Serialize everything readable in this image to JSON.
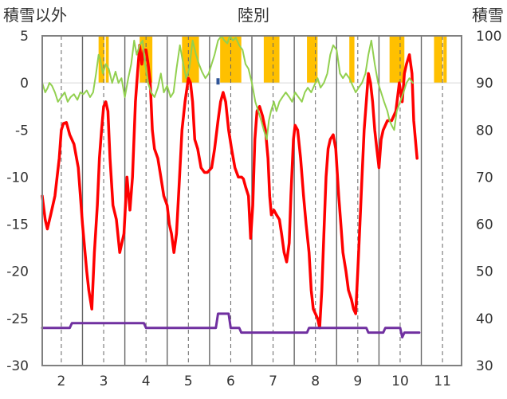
{
  "chart_data": {
    "type": "line",
    "title": "陸別",
    "ylabel_left": "積雪以外",
    "ylabel_right": "積雪",
    "y_left_range": [
      -30,
      5
    ],
    "y_right_range": [
      30,
      100
    ],
    "y_left_ticks": [
      5,
      0,
      -5,
      -10,
      -15,
      -20,
      -25,
      -30
    ],
    "y_right_ticks": [
      100,
      90,
      80,
      70,
      60,
      50,
      40,
      30
    ],
    "x_range": [
      1.55,
      11.45
    ],
    "x_ticks": [
      2,
      3,
      4,
      5,
      6,
      7,
      8,
      9,
      10,
      11
    ],
    "grid": {
      "vertical_dashed": true,
      "day_separators": true
    },
    "colors": {
      "red": "#ff0000",
      "green": "#92d050",
      "purple": "#7030a0",
      "orange": "#ffc000",
      "blue": "#2f5597",
      "frame": "#808080",
      "grid": "#666666"
    },
    "series": [
      {
        "color_key": "red",
        "axis": "left",
        "points": [
          [
            1.55,
            -12
          ],
          [
            1.62,
            -14.5
          ],
          [
            1.67,
            -15.5
          ],
          [
            1.75,
            -14
          ],
          [
            1.85,
            -12
          ],
          [
            1.95,
            -8
          ],
          [
            2.0,
            -5
          ],
          [
            2.05,
            -4.3
          ],
          [
            2.12,
            -4.2
          ],
          [
            2.2,
            -5.5
          ],
          [
            2.3,
            -6.5
          ],
          [
            2.4,
            -9
          ],
          [
            2.5,
            -15
          ],
          [
            2.6,
            -20
          ],
          [
            2.65,
            -22
          ],
          [
            2.72,
            -24
          ],
          [
            2.78,
            -18
          ],
          [
            2.85,
            -13
          ],
          [
            2.9,
            -8
          ],
          [
            2.95,
            -5
          ],
          [
            3.0,
            -2.5
          ],
          [
            3.05,
            -2
          ],
          [
            3.1,
            -3
          ],
          [
            3.15,
            -8
          ],
          [
            3.22,
            -13
          ],
          [
            3.3,
            -14.5
          ],
          [
            3.38,
            -18
          ],
          [
            3.48,
            -16
          ],
          [
            3.55,
            -10
          ],
          [
            3.62,
            -13.5
          ],
          [
            3.68,
            -10
          ],
          [
            3.75,
            -2
          ],
          [
            3.8,
            1
          ],
          [
            3.85,
            4
          ],
          [
            3.9,
            2
          ],
          [
            3.95,
            3.5
          ],
          [
            4.0,
            3.5
          ],
          [
            4.05,
            2
          ],
          [
            4.1,
            0
          ],
          [
            4.15,
            -5
          ],
          [
            4.2,
            -7
          ],
          [
            4.28,
            -8
          ],
          [
            4.35,
            -10
          ],
          [
            4.42,
            -12
          ],
          [
            4.5,
            -13
          ],
          [
            4.55,
            -15
          ],
          [
            4.6,
            -16
          ],
          [
            4.66,
            -18
          ],
          [
            4.72,
            -16
          ],
          [
            4.78,
            -11
          ],
          [
            4.85,
            -5
          ],
          [
            4.92,
            -2
          ],
          [
            5.0,
            0.5
          ],
          [
            5.05,
            0
          ],
          [
            5.1,
            -2
          ],
          [
            5.15,
            -6
          ],
          [
            5.22,
            -7
          ],
          [
            5.3,
            -9
          ],
          [
            5.38,
            -9.5
          ],
          [
            5.45,
            -9.5
          ],
          [
            5.55,
            -9
          ],
          [
            5.62,
            -7
          ],
          [
            5.7,
            -4
          ],
          [
            5.76,
            -2
          ],
          [
            5.82,
            -1
          ],
          [
            5.88,
            -2
          ],
          [
            5.95,
            -5
          ],
          [
            6.02,
            -7
          ],
          [
            6.1,
            -9
          ],
          [
            6.18,
            -10
          ],
          [
            6.26,
            -10
          ],
          [
            6.3,
            -10.2
          ],
          [
            6.35,
            -11
          ],
          [
            6.42,
            -12
          ],
          [
            6.47,
            -16.5
          ],
          [
            6.52,
            -13
          ],
          [
            6.57,
            -6
          ],
          [
            6.62,
            -3
          ],
          [
            6.68,
            -2.5
          ],
          [
            6.75,
            -3.5
          ],
          [
            6.82,
            -5
          ],
          [
            6.88,
            -8
          ],
          [
            6.92,
            -12
          ],
          [
            6.96,
            -14
          ],
          [
            7.02,
            -13.5
          ],
          [
            7.08,
            -14
          ],
          [
            7.15,
            -14.5
          ],
          [
            7.2,
            -16
          ],
          [
            7.26,
            -18
          ],
          [
            7.32,
            -19
          ],
          [
            7.38,
            -17
          ],
          [
            7.42,
            -12
          ],
          [
            7.48,
            -6
          ],
          [
            7.52,
            -4.5
          ],
          [
            7.58,
            -5
          ],
          [
            7.65,
            -8
          ],
          [
            7.72,
            -12
          ],
          [
            7.78,
            -15
          ],
          [
            7.85,
            -18
          ],
          [
            7.9,
            -22
          ],
          [
            7.95,
            -24
          ],
          [
            8.0,
            -24.5
          ],
          [
            8.05,
            -25
          ],
          [
            8.1,
            -26
          ],
          [
            8.15,
            -22
          ],
          [
            8.2,
            -16
          ],
          [
            8.25,
            -10
          ],
          [
            8.3,
            -7
          ],
          [
            8.35,
            -6
          ],
          [
            8.42,
            -5.5
          ],
          [
            8.48,
            -7
          ],
          [
            8.55,
            -12
          ],
          [
            8.6,
            -15
          ],
          [
            8.65,
            -18
          ],
          [
            8.72,
            -20
          ],
          [
            8.78,
            -22
          ],
          [
            8.85,
            -23
          ],
          [
            8.9,
            -24
          ],
          [
            8.95,
            -24.5
          ],
          [
            9.0,
            -20
          ],
          [
            9.05,
            -15
          ],
          [
            9.1,
            -10
          ],
          [
            9.15,
            -5
          ],
          [
            9.2,
            -2
          ],
          [
            9.25,
            1
          ],
          [
            9.3,
            0
          ],
          [
            9.35,
            -2
          ],
          [
            9.4,
            -5
          ],
          [
            9.45,
            -7
          ],
          [
            9.5,
            -9
          ],
          [
            9.55,
            -6
          ],
          [
            9.6,
            -5
          ],
          [
            9.7,
            -4
          ],
          [
            9.8,
            -4
          ],
          [
            9.9,
            -3
          ],
          [
            9.98,
            0
          ],
          [
            10.05,
            -2
          ],
          [
            10.1,
            1
          ],
          [
            10.15,
            2
          ],
          [
            10.22,
            3
          ],
          [
            10.28,
            1
          ],
          [
            10.32,
            -4
          ],
          [
            10.36,
            -6
          ],
          [
            10.4,
            -8
          ]
        ]
      },
      {
        "color_key": "green",
        "axis": "left",
        "points": [
          [
            1.55,
            0
          ],
          [
            1.62,
            -1
          ],
          [
            1.68,
            -0.5
          ],
          [
            1.72,
            0
          ],
          [
            1.78,
            -0.3
          ],
          [
            1.85,
            -1
          ],
          [
            1.92,
            -2
          ],
          [
            2.0,
            -1.5
          ],
          [
            2.08,
            -1
          ],
          [
            2.15,
            -2
          ],
          [
            2.22,
            -1.5
          ],
          [
            2.3,
            -1.2
          ],
          [
            2.38,
            -1.8
          ],
          [
            2.45,
            -1
          ],
          [
            2.52,
            -1.2
          ],
          [
            2.6,
            -0.8
          ],
          [
            2.68,
            -1.5
          ],
          [
            2.75,
            -1
          ],
          [
            2.82,
            1
          ],
          [
            2.88,
            3
          ],
          [
            2.92,
            2.5
          ],
          [
            2.98,
            1
          ],
          [
            3.05,
            2
          ],
          [
            3.12,
            1.5
          ],
          [
            3.2,
            0
          ],
          [
            3.28,
            1.2
          ],
          [
            3.35,
            0
          ],
          [
            3.42,
            0.5
          ],
          [
            3.5,
            -1.5
          ],
          [
            3.58,
            0.5
          ],
          [
            3.65,
            2
          ],
          [
            3.72,
            4.5
          ],
          [
            3.78,
            3
          ],
          [
            3.85,
            4
          ],
          [
            3.92,
            4.5
          ],
          [
            3.98,
            2
          ],
          [
            4.05,
            0
          ],
          [
            4.12,
            -1
          ],
          [
            4.2,
            -1.5
          ],
          [
            4.28,
            -0.5
          ],
          [
            4.35,
            1
          ],
          [
            4.42,
            -1
          ],
          [
            4.5,
            -0.3
          ],
          [
            4.58,
            -1.5
          ],
          [
            4.65,
            -1
          ],
          [
            4.72,
            1.5
          ],
          [
            4.8,
            4
          ],
          [
            4.88,
            2
          ],
          [
            4.95,
            0.5
          ],
          [
            5.02,
            1.5
          ],
          [
            5.1,
            4.5
          ],
          [
            5.18,
            3
          ],
          [
            5.25,
            2
          ],
          [
            5.32,
            1.2
          ],
          [
            5.4,
            0.5
          ],
          [
            5.48,
            1
          ],
          [
            5.55,
            2
          ],
          [
            5.62,
            3
          ],
          [
            5.7,
            4.5
          ],
          [
            5.78,
            5
          ],
          [
            5.85,
            4.5
          ],
          [
            5.92,
            4.2
          ],
          [
            5.98,
            5
          ],
          [
            6.05,
            4.5
          ],
          [
            6.12,
            4.8
          ],
          [
            6.2,
            4
          ],
          [
            6.28,
            3.5
          ],
          [
            6.35,
            2
          ],
          [
            6.42,
            1.5
          ],
          [
            6.5,
            0
          ],
          [
            6.58,
            -2
          ],
          [
            6.65,
            -3
          ],
          [
            6.72,
            -4
          ],
          [
            6.78,
            -5
          ],
          [
            6.85,
            -6
          ],
          [
            6.9,
            -4
          ],
          [
            6.95,
            -3
          ],
          [
            7.02,
            -2
          ],
          [
            7.08,
            -3
          ],
          [
            7.15,
            -2
          ],
          [
            7.22,
            -1.5
          ],
          [
            7.3,
            -1
          ],
          [
            7.38,
            -1.5
          ],
          [
            7.45,
            -2
          ],
          [
            7.52,
            -1
          ],
          [
            7.6,
            -1.5
          ],
          [
            7.68,
            -2
          ],
          [
            7.75,
            -1
          ],
          [
            7.82,
            -0.5
          ],
          [
            7.9,
            -1
          ],
          [
            7.95,
            -0.5
          ],
          [
            8.0,
            0
          ],
          [
            8.05,
            0.5
          ],
          [
            8.12,
            -0.5
          ],
          [
            8.2,
            0
          ],
          [
            8.28,
            1
          ],
          [
            8.35,
            3
          ],
          [
            8.42,
            4
          ],
          [
            8.5,
            3.5
          ],
          [
            8.58,
            1
          ],
          [
            8.65,
            0.5
          ],
          [
            8.72,
            1
          ],
          [
            8.8,
            0.5
          ],
          [
            8.88,
            -0.3
          ],
          [
            8.95,
            -1
          ],
          [
            9.02,
            -0.5
          ],
          [
            9.1,
            0
          ],
          [
            9.18,
            1
          ],
          [
            9.25,
            3
          ],
          [
            9.32,
            4.5
          ],
          [
            9.4,
            2
          ],
          [
            9.48,
            0
          ],
          [
            9.55,
            -1
          ],
          [
            9.62,
            -2
          ],
          [
            9.7,
            -3
          ],
          [
            9.75,
            -4
          ],
          [
            9.8,
            -4.5
          ],
          [
            9.86,
            -5
          ],
          [
            9.92,
            -3
          ],
          [
            10.0,
            -2
          ],
          [
            10.08,
            -1
          ],
          [
            10.15,
            0
          ],
          [
            10.22,
            0.5
          ],
          [
            10.3,
            0
          ]
        ]
      },
      {
        "color_key": "purple",
        "axis": "left",
        "points": [
          [
            1.55,
            -26
          ],
          [
            2.2,
            -26
          ],
          [
            2.25,
            -25.5
          ],
          [
            3.95,
            -25.5
          ],
          [
            4.0,
            -26
          ],
          [
            5.65,
            -26
          ],
          [
            5.7,
            -24.5
          ],
          [
            5.95,
            -24.5
          ],
          [
            6.0,
            -26
          ],
          [
            6.2,
            -26
          ],
          [
            6.25,
            -26.5
          ],
          [
            7.8,
            -26.5
          ],
          [
            7.85,
            -26
          ],
          [
            9.2,
            -26
          ],
          [
            9.25,
            -26.5
          ],
          [
            9.6,
            -26.5
          ],
          [
            9.65,
            -26
          ],
          [
            10.0,
            -26
          ],
          [
            10.05,
            -27
          ],
          [
            10.1,
            -26.5
          ],
          [
            10.45,
            -26.5
          ]
        ]
      }
    ],
    "bars": {
      "color_key": "orange",
      "axis": "left",
      "bottom": 0,
      "top": 5,
      "intervals": [
        [
          2.88,
          3.02
        ],
        [
          3.05,
          3.12
        ],
        [
          3.85,
          4.15
        ],
        [
          4.85,
          5.25
        ],
        [
          5.75,
          6.25
        ],
        [
          6.78,
          7.15
        ],
        [
          7.8,
          8.05
        ],
        [
          8.8,
          8.92
        ],
        [
          9.75,
          10.1
        ],
        [
          10.8,
          11.0
        ],
        [
          11.02,
          11.1
        ]
      ]
    },
    "blue_marks": [
      [
        5.7,
        0.5
      ]
    ]
  }
}
